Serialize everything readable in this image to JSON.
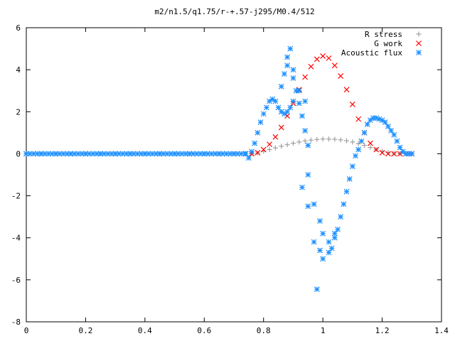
{
  "chart_data": {
    "type": "scatter",
    "title": "m2/n1.5/q1.75/r-+.57-j295/M0.4/512",
    "xlabel": "",
    "ylabel": "",
    "xlim": [
      0,
      1.4
    ],
    "ylim": [
      -8,
      6
    ],
    "x_ticks": [
      "0",
      "0.2",
      "0.4",
      "0.6",
      "0.8",
      "1",
      "1.2",
      "1.4"
    ],
    "y_ticks": [
      "-8",
      "-6",
      "-4",
      "-2",
      "0",
      "2",
      "4",
      "6"
    ],
    "x_tick_values": [
      0,
      0.2,
      0.4,
      0.6,
      0.8,
      1.0,
      1.2,
      1.4
    ],
    "y_tick_values": [
      -8,
      -6,
      -4,
      -2,
      0,
      2,
      4,
      6
    ],
    "grid": false,
    "legend_position": "top-right",
    "series": [
      {
        "name": "R stress",
        "marker": "plus",
        "color": "#a0a0a0",
        "x": [
          0.76,
          0.78,
          0.8,
          0.82,
          0.84,
          0.86,
          0.88,
          0.9,
          0.92,
          0.94,
          0.96,
          0.98,
          1.0,
          1.02,
          1.04,
          1.06,
          1.08,
          1.1,
          1.12,
          1.14,
          1.16,
          1.18,
          1.2,
          1.22,
          1.24,
          1.26,
          1.28,
          1.3
        ],
        "y": [
          0.0,
          0.04,
          0.12,
          0.2,
          0.28,
          0.36,
          0.43,
          0.5,
          0.56,
          0.61,
          0.65,
          0.68,
          0.7,
          0.7,
          0.69,
          0.66,
          0.62,
          0.56,
          0.48,
          0.4,
          0.3,
          0.2,
          0.12,
          0.06,
          0.03,
          0.01,
          0.0,
          0.0
        ]
      },
      {
        "name": "G work",
        "marker": "cross",
        "color": "#ff0000",
        "x": [
          0.76,
          0.78,
          0.8,
          0.82,
          0.84,
          0.86,
          0.88,
          0.9,
          0.92,
          0.94,
          0.96,
          0.98,
          1.0,
          1.02,
          1.04,
          1.06,
          1.08,
          1.1,
          1.12,
          1.14,
          1.16,
          1.18,
          1.2,
          1.22,
          1.24,
          1.26,
          1.28,
          1.3
        ],
        "y": [
          0.0,
          0.05,
          0.2,
          0.45,
          0.8,
          1.25,
          1.8,
          2.4,
          3.05,
          3.65,
          4.15,
          4.5,
          4.65,
          4.55,
          4.2,
          3.7,
          3.05,
          2.35,
          1.65,
          1.0,
          0.5,
          0.2,
          0.05,
          0.0,
          0.0,
          0.0,
          0.0,
          0.0
        ]
      },
      {
        "name": "Acoustic flux",
        "marker": "star",
        "color": "#1e90ff",
        "x": [
          0.0,
          0.05,
          0.1,
          0.15,
          0.2,
          0.25,
          0.3,
          0.35,
          0.4,
          0.45,
          0.5,
          0.55,
          0.6,
          0.65,
          0.7,
          0.74,
          0.75,
          0.76,
          0.77,
          0.78,
          0.79,
          0.8,
          0.81,
          0.82,
          0.83,
          0.84,
          0.85,
          0.86,
          0.87,
          0.88,
          0.89,
          0.9,
          0.86,
          0.87,
          0.88,
          0.89,
          0.9,
          0.91,
          0.92,
          0.93,
          0.94,
          0.95,
          0.88,
          0.9,
          0.92,
          0.94,
          0.95,
          0.97,
          0.99,
          1.0,
          1.02,
          1.03,
          1.04,
          1.05,
          1.06,
          1.07,
          1.08,
          1.09,
          1.1,
          1.11,
          1.12,
          1.13,
          1.14,
          1.15,
          1.16,
          1.17,
          1.18,
          1.19,
          1.2,
          1.21,
          1.22,
          1.23,
          1.24,
          1.25,
          1.26,
          1.27,
          1.28,
          1.29,
          1.3,
          0.93,
          0.95,
          0.97,
          0.99,
          1.0,
          1.02,
          1.04,
          0.98
        ],
        "y": [
          0,
          0,
          0,
          0,
          0,
          0,
          0,
          0,
          0,
          0,
          0,
          0,
          0,
          0,
          0,
          0,
          -0.2,
          0.1,
          0.5,
          1.0,
          1.5,
          1.9,
          2.2,
          2.5,
          2.6,
          2.5,
          2.2,
          2.0,
          1.9,
          2.0,
          2.2,
          2.5,
          3.2,
          3.8,
          4.2,
          5.0,
          3.6,
          3.0,
          2.4,
          1.8,
          1.1,
          0.4,
          4.6,
          4.0,
          3.0,
          2.5,
          -1.0,
          -2.4,
          -3.2,
          -3.8,
          -4.2,
          -4.5,
          -4.0,
          -3.6,
          -3.0,
          -2.4,
          -1.8,
          -1.2,
          -0.6,
          -0.1,
          0.2,
          0.6,
          1.0,
          1.4,
          1.6,
          1.7,
          1.7,
          1.65,
          1.6,
          1.5,
          1.3,
          1.1,
          0.9,
          0.6,
          0.3,
          0.1,
          0.0,
          0.0,
          0.0,
          -1.6,
          -2.5,
          -4.2,
          -4.6,
          -5.0,
          -4.7,
          -3.8,
          -6.45
        ]
      }
    ]
  }
}
